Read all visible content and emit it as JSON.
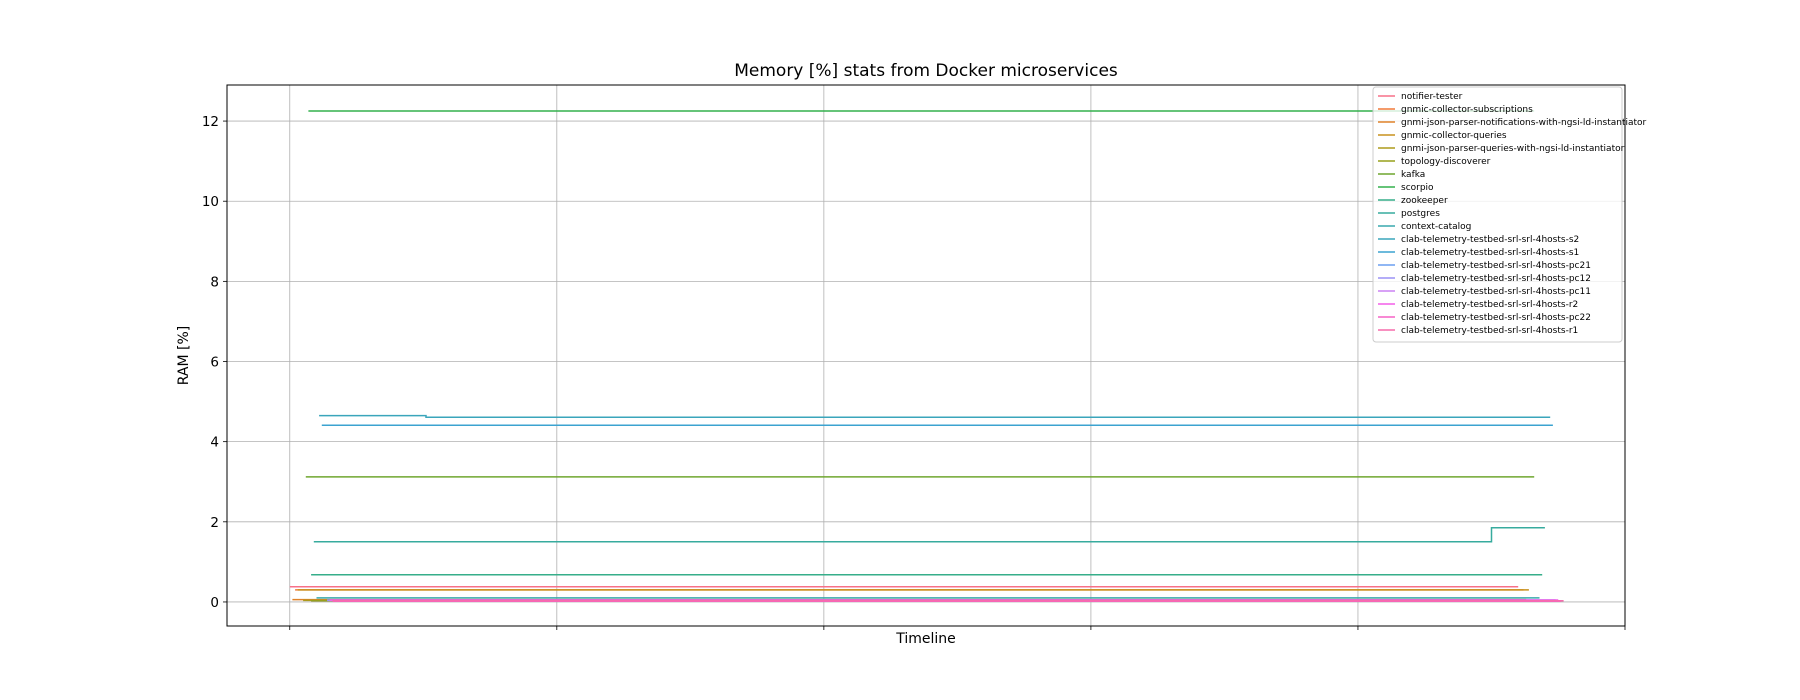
{
  "chart_data": {
    "type": "line",
    "title": "Memory [%] stats from Docker microservices",
    "xlabel": "Timeline",
    "ylabel": "RAM [%]",
    "xlim": [
      -0.235,
      5.0
    ],
    "ylim": [
      -0.6,
      12.9
    ],
    "yticks": [
      0,
      2,
      4,
      6,
      8,
      10,
      12
    ],
    "xgrid": [
      0,
      1,
      2,
      3,
      4,
      5
    ],
    "grid": true,
    "legend_position": "top-right",
    "series": [
      {
        "name": "notifier-tester",
        "color": "#f77189",
        "x": [
          0.0,
          4.6
        ],
        "y": [
          0.38,
          0.38
        ]
      },
      {
        "name": "gnmic-collector-subscriptions",
        "color": "#f07a3a",
        "x": [
          0.02,
          4.62
        ],
        "y": [
          0.3,
          0.3
        ]
      },
      {
        "name": "gnmi-json-parser-notifications-with-ngsi-ld-instantiator",
        "color": "#e0832a",
        "x": [
          0.01,
          4.63
        ],
        "y": [
          0.06,
          0.06
        ]
      },
      {
        "name": "gnmic-collector-queries",
        "color": "#c8921e",
        "x": [
          0.03,
          4.64
        ],
        "y": [
          0.3,
          0.3
        ]
      },
      {
        "name": "gnmi-json-parser-queries-with-ngsi-ld-instantiator",
        "color": "#ad9b1c",
        "x": [
          0.05,
          4.63
        ],
        "y": [
          0.04,
          0.04
        ]
      },
      {
        "name": "topology-discoverer",
        "color": "#97a01c",
        "x": [
          0.08,
          4.63
        ],
        "y": [
          0.03,
          0.03
        ]
      },
      {
        "name": "kafka",
        "color": "#6fa62f",
        "x": [
          0.06,
          4.66
        ],
        "y": [
          3.12,
          3.12
        ]
      },
      {
        "name": "scorpio",
        "color": "#33b04d",
        "x": [
          0.07,
          4.66
        ],
        "y": [
          12.25,
          12.25
        ]
      },
      {
        "name": "zookeeper",
        "color": "#36ae8a",
        "x": [
          0.08,
          4.69
        ],
        "y": [
          0.68,
          0.68
        ]
      },
      {
        "name": "postgres",
        "color": "#37ab9e",
        "x": [
          0.09,
          4.5,
          4.5,
          4.7
        ],
        "y": [
          1.5,
          1.5,
          1.85,
          1.85
        ]
      },
      {
        "name": "context-catalog",
        "color": "#39a9ad",
        "x": [
          0.1,
          4.68
        ],
        "y": [
          0.1,
          0.1
        ]
      },
      {
        "name": "clab-telemetry-testbed-srl-srl-4hosts-s2",
        "color": "#3aa5bb",
        "x": [
          0.11,
          0.51,
          0.51,
          4.72
        ],
        "y": [
          4.65,
          4.65,
          4.61,
          4.61
        ]
      },
      {
        "name": "clab-telemetry-testbed-srl-srl-4hosts-s1",
        "color": "#3ba3d0",
        "x": [
          0.12,
          4.73
        ],
        "y": [
          4.41,
          4.41
        ]
      },
      {
        "name": "clab-telemetry-testbed-srl-srl-4hosts-pc21",
        "color": "#6c9ff0",
        "x": [
          0.14,
          4.74
        ],
        "y": [
          0.05,
          0.05
        ]
      },
      {
        "name": "clab-telemetry-testbed-srl-srl-4hosts-pc12",
        "color": "#9c92f5",
        "x": [
          0.14,
          4.74
        ],
        "y": [
          0.04,
          0.04
        ]
      },
      {
        "name": "clab-telemetry-testbed-srl-srl-4hosts-pc11",
        "color": "#cb82f4",
        "x": [
          0.15,
          4.75
        ],
        "y": [
          0.04,
          0.04
        ]
      },
      {
        "name": "clab-telemetry-testbed-srl-srl-4hosts-r2",
        "color": "#f45fe8",
        "x": [
          0.15,
          4.75
        ],
        "y": [
          0.05,
          0.05
        ]
      },
      {
        "name": "clab-telemetry-testbed-srl-srl-4hosts-pc22",
        "color": "#f562c6",
        "x": [
          0.16,
          4.76
        ],
        "y": [
          0.02,
          0.02
        ]
      },
      {
        "name": "clab-telemetry-testbed-srl-srl-4hosts-r1",
        "color": "#f66bab",
        "x": [
          0.16,
          4.77
        ],
        "y": [
          0.03,
          0.03
        ]
      }
    ]
  }
}
